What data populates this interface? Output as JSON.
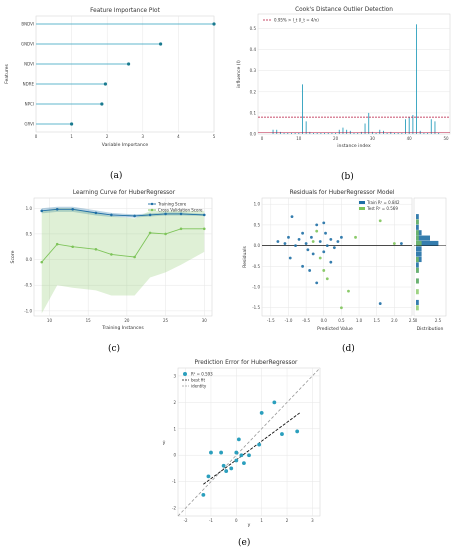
{
  "captions": [
    "(a)",
    "(b)",
    "(c)",
    "(d)",
    "(e)"
  ],
  "chart_data": [
    {
      "id": "a",
      "type": "lollipop-horizontal",
      "title": "Feature Importance Plot",
      "xlabel": "Variable Importance",
      "ylabel": "Features",
      "xlim": [
        0,
        5
      ],
      "xticks": [
        "0",
        "1",
        "2",
        "3",
        "4",
        "5"
      ],
      "categories": [
        "BNDVI",
        "GNDVI",
        "NDVI",
        "NDRE",
        "NPCI",
        "GRVI"
      ],
      "values": [
        5.0,
        3.5,
        2.6,
        1.95,
        1.85,
        1.0
      ],
      "color": "#2b9fbd"
    },
    {
      "id": "b",
      "type": "stem",
      "title": "Cook's Distance Outlier Detection",
      "xlabel": "instance index",
      "ylabel": "influence (I)",
      "legend": "0.95% > I_t (I_t = 4/n)",
      "xlim": [
        0,
        50
      ],
      "ylim": [
        0,
        0.55
      ],
      "xticks": [
        "0",
        "10",
        "20",
        "30",
        "40",
        "50"
      ],
      "yticks": [
        "0.0",
        "0.1",
        "0.2",
        "0.3",
        "0.4",
        "0.5"
      ],
      "threshold": 0.08,
      "x": [
        3,
        4,
        5,
        6,
        7,
        8,
        9,
        10,
        11,
        12,
        13,
        14,
        15,
        16,
        17,
        18,
        19,
        20,
        21,
        22,
        23,
        24,
        25,
        26,
        27,
        28,
        29,
        30,
        31,
        32,
        33,
        34,
        35,
        36,
        37,
        38,
        39,
        40,
        41,
        42,
        43,
        44,
        45,
        46,
        47,
        48
      ],
      "values": [
        0.02,
        0.02,
        0.01,
        0.005,
        0.005,
        0.005,
        0.005,
        0.005,
        0.235,
        0.06,
        0.01,
        0.005,
        0.005,
        0.005,
        0.005,
        0.005,
        0.005,
        0.005,
        0.02,
        0.03,
        0.02,
        0.015,
        0.005,
        0.005,
        0.01,
        0.05,
        0.1,
        0.01,
        0.005,
        0.02,
        0.015,
        0.005,
        0.01,
        0.005,
        0.005,
        0.005,
        0.07,
        0.08,
        0.09,
        0.52,
        0.015,
        0.005,
        0.005,
        0.07,
        0.06,
        0.005
      ],
      "color": "#2b9fbd",
      "threshold_color": "#b5123a"
    },
    {
      "id": "c",
      "type": "line",
      "title": "Learning Curve for HuberRegressor",
      "xlabel": "Training Instances",
      "ylabel": "Score",
      "xlim": [
        8,
        31
      ],
      "ylim": [
        -1.1,
        1.2
      ],
      "xticks": [
        "10",
        "15",
        "20",
        "25",
        "30"
      ],
      "xtick_values": [
        10,
        15,
        20,
        25,
        30
      ],
      "yticks": [
        "-1.0",
        "-0.5",
        "0.0",
        "0.5",
        "1.0"
      ],
      "ytick_values": [
        -1.0,
        -0.5,
        0.0,
        0.5,
        1.0
      ],
      "series": [
        {
          "name": "Training Score",
          "x": [
            9,
            11,
            13,
            16,
            18,
            21,
            23,
            25,
            27,
            30
          ],
          "values": [
            0.95,
            0.98,
            0.98,
            0.91,
            0.87,
            0.85,
            0.87,
            0.89,
            0.89,
            0.87
          ],
          "band_low": [
            0.9,
            0.93,
            0.93,
            0.86,
            0.83,
            0.82,
            0.84,
            0.86,
            0.86,
            0.85
          ],
          "band_high": [
            1.0,
            1.03,
            1.03,
            0.96,
            0.91,
            0.88,
            0.9,
            0.92,
            0.92,
            0.89
          ],
          "color": "#1f6fa5"
        },
        {
          "name": "Cross Validation Score",
          "x": [
            9,
            11,
            13,
            16,
            18,
            21,
            23,
            25,
            27,
            30
          ],
          "values": [
            -0.05,
            0.3,
            0.25,
            0.2,
            0.1,
            0.05,
            0.52,
            0.5,
            0.6,
            0.6
          ],
          "band_low": [
            -1.05,
            -0.5,
            -0.55,
            -0.6,
            -0.7,
            -0.7,
            -0.35,
            -0.25,
            -0.1,
            0.15
          ],
          "band_high": [
            0.95,
            1.0,
            1.0,
            0.9,
            0.85,
            0.8,
            0.95,
            0.95,
            0.95,
            0.95
          ],
          "color": "#7ec45a"
        }
      ]
    },
    {
      "id": "d",
      "type": "scatter",
      "title": "Residuals for HuberRegressor Model",
      "xlabel": "Predicted Value",
      "ylabel": "Residuals",
      "distribution_label": "Distribution",
      "xlim": [
        -1.75,
        2.5
      ],
      "ylim": [
        -1.7,
        1.15
      ],
      "xticks": [
        "-1.5",
        "-1.0",
        "-0.5",
        "0.0",
        "0.5",
        "1.0",
        "1.5",
        "2.0",
        "2.5"
      ],
      "xtick_values": [
        -1.5,
        -1.0,
        -0.5,
        0.0,
        0.5,
        1.0,
        1.5,
        2.0,
        2.5
      ],
      "yticks": [
        "-1.5",
        "-1.0",
        "-0.5",
        "0.0",
        "0.5",
        "1.0"
      ],
      "ytick_values": [
        -1.5,
        -1.0,
        -0.5,
        0.0,
        0.5,
        1.0
      ],
      "dist_ticks": [
        "0",
        "2.5"
      ],
      "series": [
        {
          "name": "Train R² = 0.842",
          "color": "#1f6fa5",
          "x": [
            -1.3,
            -1.1,
            -1.0,
            -0.95,
            -0.8,
            -0.7,
            -0.6,
            -0.5,
            -0.45,
            -0.35,
            -0.3,
            -0.2,
            -0.1,
            0.0,
            0.05,
            0.1,
            0.2,
            0.3,
            0.4,
            0.5,
            -0.6,
            -0.4,
            0.2,
            -0.2,
            1.6,
            2.2,
            -0.9,
            0.0
          ],
          "values": [
            0.1,
            0.05,
            0.2,
            -0.3,
            0.0,
            0.15,
            0.3,
            0.05,
            -0.1,
            0.2,
            -0.2,
            0.5,
            0.1,
            -0.15,
            0.3,
            0.0,
            0.15,
            -0.05,
            0.1,
            0.2,
            -0.5,
            -0.6,
            -0.4,
            -0.9,
            -1.4,
            0.05,
            0.7,
            0.55
          ]
        },
        {
          "name": "Test R² = 0.569",
          "color": "#7ec45a",
          "x": [
            -0.3,
            -0.1,
            0.1,
            0.7,
            0.9,
            1.6,
            2.0,
            0.0,
            -0.2,
            0.5
          ],
          "values": [
            0.1,
            -0.3,
            -0.8,
            -1.1,
            0.2,
            0.6,
            0.05,
            -0.6,
            0.35,
            -1.5
          ]
        }
      ]
    },
    {
      "id": "e",
      "type": "scatter",
      "title": "Prediction Error for HuberRegressor",
      "xlabel": "y",
      "ylabel": "ŷ",
      "legend": [
        "R² = 0.593",
        "best fit",
        "identity"
      ],
      "xlim": [
        -2.3,
        3.3
      ],
      "ylim": [
        -2.3,
        3.3
      ],
      "xticks": [
        "-2",
        "-1",
        "0",
        "1",
        "2",
        "3"
      ],
      "xtick_values": [
        -2,
        -1,
        0,
        1,
        2,
        3
      ],
      "yticks": [
        "-2",
        "-1",
        "0",
        "1",
        "2",
        "3"
      ],
      "ytick_values": [
        -2,
        -1,
        0,
        1,
        2,
        3
      ],
      "x": [
        -1.3,
        -1.1,
        -1.0,
        -0.6,
        -0.4,
        -0.2,
        0.0,
        0.1,
        0.2,
        0.3,
        0.5,
        0.9,
        1.0,
        1.5,
        1.8,
        2.4,
        0.0,
        -0.5
      ],
      "values": [
        -1.5,
        -0.8,
        0.1,
        0.1,
        -0.6,
        -0.5,
        -0.2,
        0.6,
        0.0,
        -0.3,
        0.0,
        0.4,
        1.6,
        2.0,
        0.8,
        0.9,
        0.1,
        -0.4
      ],
      "best_fit": [
        [
          -1.3,
          -1.1
        ],
        [
          2.5,
          1.6
        ]
      ],
      "identity": [
        [
          -2.3,
          -2.3
        ],
        [
          3.3,
          3.3
        ]
      ],
      "color": "#2b9fbd"
    }
  ]
}
